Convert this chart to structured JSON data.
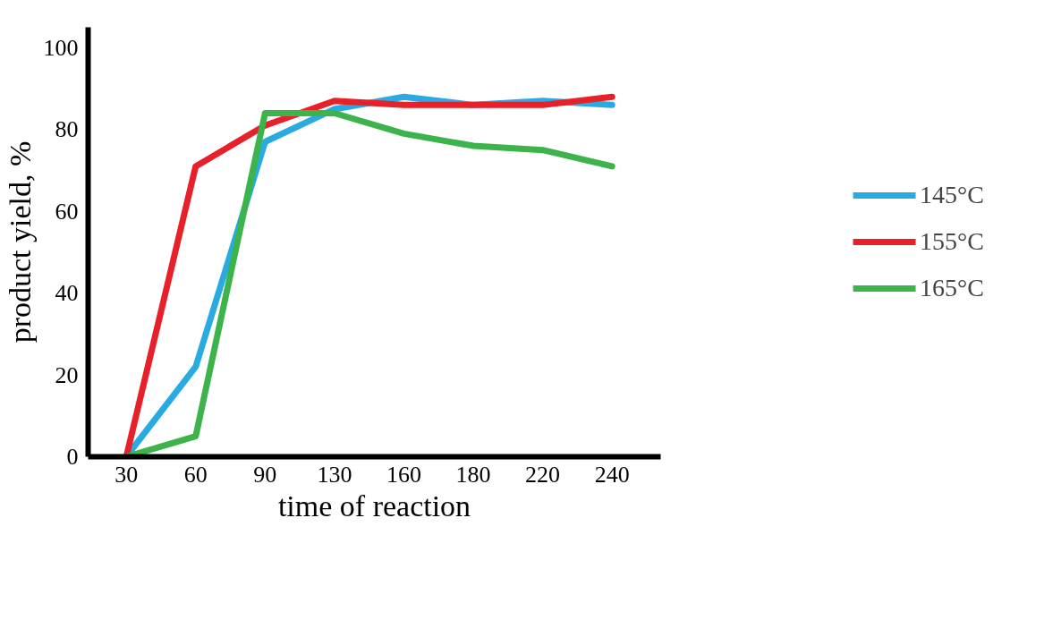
{
  "chart_data": {
    "type": "line",
    "xlabel": "time of reaction",
    "ylabel": "product yield, %",
    "categories": [
      "30",
      "60",
      "90",
      "130",
      "160",
      "180",
      "220",
      "240"
    ],
    "series": [
      {
        "name": "145°C",
        "color": "#29abe2",
        "values": [
          0,
          22,
          77,
          85,
          88,
          86,
          87,
          86
        ]
      },
      {
        "name": "155°C",
        "color": "#e8202a",
        "values": [
          0,
          71,
          81,
          87,
          86,
          86,
          86,
          88
        ]
      },
      {
        "name": "165°C",
        "color": "#3cb44b",
        "values": [
          0,
          5,
          84,
          84,
          79,
          76,
          75,
          71
        ]
      }
    ],
    "ylim": [
      0,
      105
    ],
    "yticks": [
      0,
      20,
      40,
      60,
      80,
      100
    ],
    "grid": false,
    "legend": "right",
    "marker": "none",
    "line_style": "solid"
  }
}
